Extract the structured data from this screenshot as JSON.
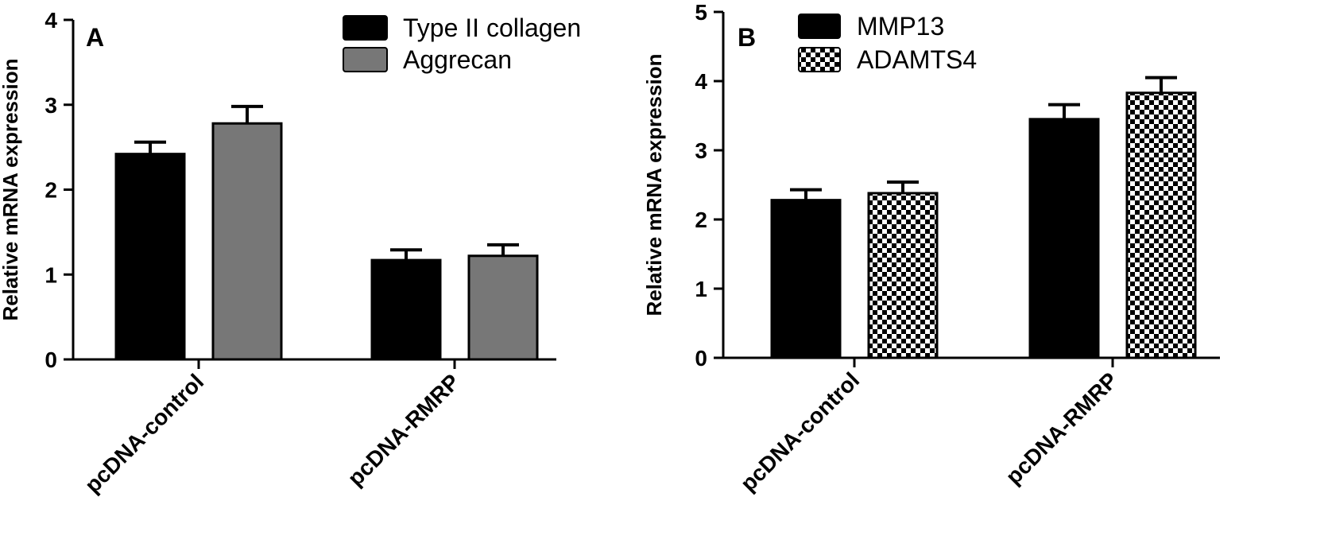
{
  "chart_data": [
    {
      "type": "bar",
      "panel_label": "A",
      "ylabel": "Relative mRNA expression",
      "xlabel": "",
      "ylim": [
        0,
        4
      ],
      "yticks": [
        "0",
        "1",
        "2",
        "3",
        "4"
      ],
      "categories": [
        "pcDNA-control",
        "pcDNA-RMRP"
      ],
      "legend_position": "top-right",
      "grid": false,
      "series": [
        {
          "name": "Type II collagen",
          "values": [
            2.42,
            1.17
          ],
          "errors": [
            0.14,
            0.12
          ],
          "color": "#000000",
          "pattern": "solid"
        },
        {
          "name": "Aggrecan",
          "values": [
            2.78,
            1.22
          ],
          "errors": [
            0.2,
            0.13
          ],
          "color": "#777777",
          "pattern": "solid"
        }
      ]
    },
    {
      "type": "bar",
      "panel_label": "B",
      "ylabel": "Relative mRNA expression",
      "xlabel": "",
      "ylim": [
        0,
        5
      ],
      "yticks": [
        "0",
        "1",
        "2",
        "3",
        "4",
        "5"
      ],
      "categories": [
        "pcDNA-control",
        "pcDNA-RMRP"
      ],
      "legend_position": "top-left",
      "grid": false,
      "series": [
        {
          "name": "MMP13",
          "values": [
            2.28,
            3.45
          ],
          "errors": [
            0.15,
            0.21
          ],
          "color": "#000000",
          "pattern": "solid"
        },
        {
          "name": "ADAMTS4",
          "values": [
            2.38,
            3.83
          ],
          "errors": [
            0.16,
            0.22
          ],
          "color": "#000000",
          "pattern": "checker"
        }
      ]
    }
  ]
}
